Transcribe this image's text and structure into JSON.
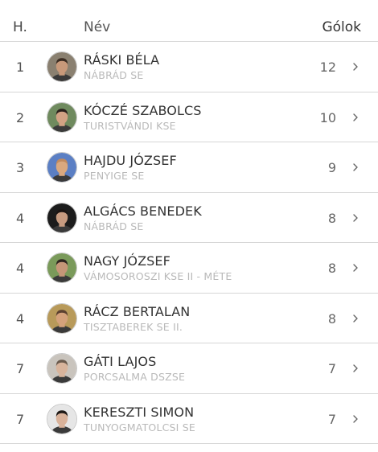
{
  "header": {
    "rank": "H.",
    "name": "Név",
    "goals": "Gólok"
  },
  "rows": [
    {
      "rank": "1",
      "name": "RÁSKI BÉLA",
      "team": "NÁBRÁD SE",
      "goals": "12",
      "skin": "#c8997a",
      "hair": "#3b2c22",
      "bg": "#8a8070"
    },
    {
      "rank": "2",
      "name": "KÓCZÉ SZABOLCS",
      "team": "TURISTVÁNDI KSE",
      "goals": "10",
      "skin": "#d2a284",
      "hair": "#2a211c",
      "bg": "#6f8a5e"
    },
    {
      "rank": "3",
      "name": "HAJDU JÓZSEF",
      "team": "PENYIGE SE",
      "goals": "9",
      "skin": "#d9a87f",
      "hair": "#c08a5f",
      "bg": "#5b7fc4"
    },
    {
      "rank": "4",
      "name": "ALGÁCS BENEDEK",
      "team": "NÁBRÁD SE",
      "goals": "8",
      "skin": "#c79b80",
      "hair": "#1b1412",
      "bg": "#1c1c1c"
    },
    {
      "rank": "4",
      "name": "NAGY JÓZSEF",
      "team": "VÁMOSOROSZI KSE II - MÉTE",
      "goals": "8",
      "skin": "#c59678",
      "hair": "#2e2520",
      "bg": "#7a9a5a"
    },
    {
      "rank": "4",
      "name": "RÁCZ BERTALAN",
      "team": "TISZTABEREK SE II.",
      "goals": "8",
      "skin": "#d4a17b",
      "hair": "#5b4030",
      "bg": "#b89a5a"
    },
    {
      "rank": "7",
      "name": "GÁTI LAJOS",
      "team": "PORCSALMA DSZSE",
      "goals": "7",
      "skin": "#d8b49c",
      "hair": "#6a5a4d",
      "bg": "#c9c4bd"
    },
    {
      "rank": "7",
      "name": "KERESZTI SIMON",
      "team": "TUNYOGMATOLCSI SE",
      "goals": "7",
      "skin": "#d9b29a",
      "hair": "#1e1916",
      "bg": "#e6e6e6"
    }
  ],
  "icons": {
    "avatar": "player-photo-icon",
    "chevron": "chevron-right-icon"
  },
  "colors": {
    "divider": "#d6d6d6",
    "team": "#b9b9b9",
    "text": "#333333"
  }
}
